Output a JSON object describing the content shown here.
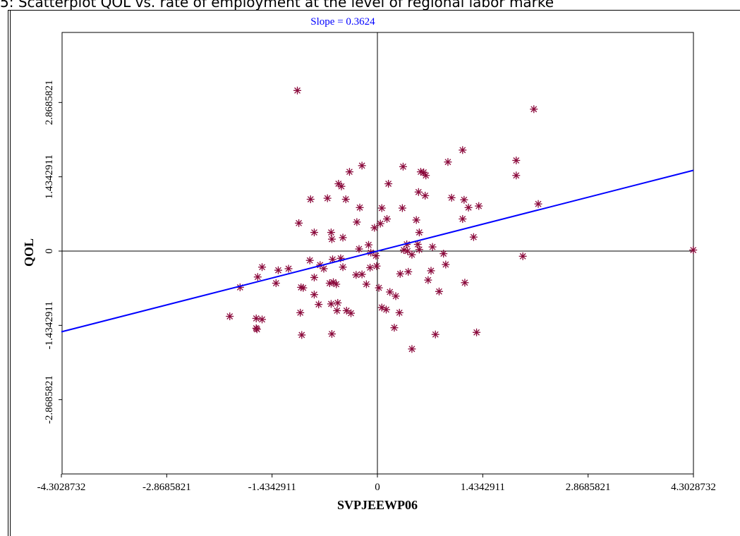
{
  "page_title": "5: Scatterplot QOL vs. rate of employment at the level of regional labor marke",
  "chart_data": {
    "type": "scatter",
    "xlabel": "SVPJEEWP06",
    "ylabel": "QOL",
    "annotation": "Slope = 0.3624",
    "slope": 0.3624,
    "xlim": [
      -4.3028732,
      4.3028732
    ],
    "ylim": [
      -4.3028732,
      4.3028732
    ],
    "x_ticks": [
      "-4.3028732",
      "-2.8685821",
      "-1.4342911",
      "0",
      "1.4342911",
      "2.8685821",
      "4.3028732"
    ],
    "y_ticks": [
      "-2.8685821",
      "-1.4342911",
      "0",
      "1.4342911",
      "2.8685821"
    ],
    "x_tick_values": [
      -4.3028732,
      -2.8685821,
      -1.4342911,
      0,
      1.4342911,
      2.8685821,
      4.3028732
    ],
    "y_tick_values": [
      -2.8685821,
      -1.4342911,
      0,
      1.4342911,
      2.8685821
    ],
    "grid": false,
    "colors": {
      "points": "#8b0a3c",
      "regression_line": "#0000ff",
      "axes": "#000000"
    },
    "points": [
      [
        -1.09,
        3.1
      ],
      [
        2.13,
        2.74
      ],
      [
        1.16,
        1.95
      ],
      [
        1.89,
        1.75
      ],
      [
        1.89,
        1.46
      ],
      [
        0.96,
        1.72
      ],
      [
        0.63,
        1.52
      ],
      [
        0.59,
        1.53
      ],
      [
        0.66,
        1.46
      ],
      [
        0.35,
        1.63
      ],
      [
        -0.21,
        1.65
      ],
      [
        -0.38,
        1.53
      ],
      [
        0.15,
        1.3
      ],
      [
        -0.53,
        1.3
      ],
      [
        -0.49,
        1.25
      ],
      [
        0.56,
        1.14
      ],
      [
        0.65,
        1.07
      ],
      [
        -0.68,
        1.02
      ],
      [
        -0.43,
        1.0
      ],
      [
        -0.91,
        1.0
      ],
      [
        1.01,
        1.03
      ],
      [
        1.18,
        0.99
      ],
      [
        1.38,
        0.87
      ],
      [
        1.24,
        0.84
      ],
      [
        2.19,
        0.91
      ],
      [
        -0.24,
        0.84
      ],
      [
        0.06,
        0.83
      ],
      [
        0.34,
        0.83
      ],
      [
        0.13,
        0.62
      ],
      [
        0.53,
        0.6
      ],
      [
        0.04,
        0.53
      ],
      [
        -0.04,
        0.45
      ],
      [
        -1.07,
        0.54
      ],
      [
        -0.86,
        0.36
      ],
      [
        -0.63,
        0.36
      ],
      [
        -0.62,
        0.23
      ],
      [
        -0.47,
        0.26
      ],
      [
        -0.28,
        0.56
      ],
      [
        1.16,
        0.62
      ],
      [
        1.31,
        0.27
      ],
      [
        0.57,
        0.36
      ],
      [
        0.55,
        0.13
      ],
      [
        0.4,
        0.13
      ],
      [
        0.36,
        0.02
      ],
      [
        0.41,
        0.0
      ],
      [
        0.47,
        -0.07
      ],
      [
        0.57,
        0.03
      ],
      [
        0.75,
        0.08
      ],
      [
        0.9,
        -0.05
      ],
      [
        0.93,
        -0.26
      ],
      [
        0.73,
        -0.38
      ],
      [
        0.69,
        -0.56
      ],
      [
        0.84,
        -0.78
      ],
      [
        1.19,
        -0.61
      ],
      [
        1.98,
        -0.1
      ],
      [
        4.3,
        0.02
      ],
      [
        -0.12,
        0.12
      ],
      [
        -0.25,
        0.04
      ],
      [
        -0.09,
        -0.03
      ],
      [
        -0.02,
        -0.09
      ],
      [
        -0.1,
        -0.32
      ],
      [
        -0.01,
        -0.29
      ],
      [
        -0.21,
        -0.45
      ],
      [
        -0.5,
        -0.14
      ],
      [
        -0.47,
        -0.31
      ],
      [
        -0.61,
        -0.16
      ],
      [
        -0.78,
        -0.27
      ],
      [
        -0.92,
        -0.18
      ],
      [
        -0.86,
        -0.51
      ],
      [
        -0.73,
        -0.34
      ],
      [
        -1.01,
        -0.71
      ],
      [
        -1.04,
        -0.7
      ],
      [
        -0.6,
        -0.6
      ],
      [
        -0.65,
        -0.62
      ],
      [
        -0.56,
        -0.64
      ],
      [
        -1.21,
        -0.34
      ],
      [
        -1.35,
        -0.37
      ],
      [
        -1.38,
        -0.62
      ],
      [
        -1.57,
        -0.31
      ],
      [
        -1.63,
        -0.5
      ],
      [
        -1.87,
        -0.7
      ],
      [
        -0.86,
        -0.84
      ],
      [
        -0.8,
        -1.03
      ],
      [
        -0.63,
        -1.02
      ],
      [
        -0.54,
        -1.0
      ],
      [
        -0.55,
        -1.15
      ],
      [
        -0.42,
        -1.15
      ],
      [
        -0.36,
        -1.2
      ],
      [
        -0.29,
        -0.46
      ],
      [
        -0.15,
        -0.64
      ],
      [
        0.02,
        -0.71
      ],
      [
        0.17,
        -0.79
      ],
      [
        0.25,
        -0.87
      ],
      [
        0.31,
        -0.44
      ],
      [
        0.42,
        -0.4
      ],
      [
        0.06,
        -1.09
      ],
      [
        0.12,
        -1.13
      ],
      [
        0.3,
        -1.19
      ],
      [
        0.23,
        -1.48
      ],
      [
        -0.62,
        -1.6
      ],
      [
        -1.03,
        -1.62
      ],
      [
        -1.05,
        -1.19
      ],
      [
        -1.65,
        -1.3
      ],
      [
        -1.57,
        -1.32
      ],
      [
        -1.65,
        -1.49
      ],
      [
        -1.64,
        -1.51
      ],
      [
        -2.01,
        -1.26
      ],
      [
        0.79,
        -1.61
      ],
      [
        1.35,
        -1.57
      ],
      [
        0.47,
        -1.89
      ]
    ]
  }
}
